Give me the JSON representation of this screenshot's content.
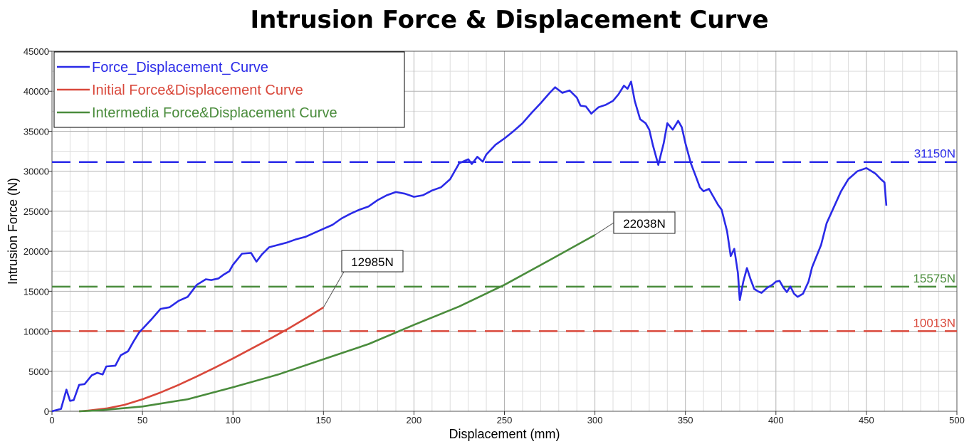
{
  "chart_data": {
    "type": "line",
    "title": "Intrusion Force & Displacement Curve",
    "xlabel": "Displacement (mm)",
    "ylabel": "Intrusion Force (N)",
    "xlim": [
      0,
      500
    ],
    "ylim": [
      0,
      45000
    ],
    "x_ticks": [
      0,
      50,
      100,
      150,
      200,
      250,
      300,
      350,
      400,
      450,
      500
    ],
    "y_ticks": [
      0,
      5000,
      10000,
      15000,
      20000,
      25000,
      30000,
      35000,
      40000,
      45000
    ],
    "grid": true,
    "legend_position": "top-left",
    "series": [
      {
        "name": "Force_Displacement_Curve",
        "color": "#2a2ae8",
        "points": [
          [
            0,
            0
          ],
          [
            5,
            300
          ],
          [
            8,
            2700
          ],
          [
            10,
            1300
          ],
          [
            12,
            1400
          ],
          [
            15,
            3300
          ],
          [
            18,
            3400
          ],
          [
            22,
            4500
          ],
          [
            25,
            4800
          ],
          [
            28,
            4600
          ],
          [
            30,
            5600
          ],
          [
            35,
            5700
          ],
          [
            38,
            7000
          ],
          [
            42,
            7500
          ],
          [
            45,
            8700
          ],
          [
            48,
            9800
          ],
          [
            50,
            10300
          ],
          [
            55,
            11500
          ],
          [
            60,
            12800
          ],
          [
            65,
            13000
          ],
          [
            70,
            13800
          ],
          [
            75,
            14300
          ],
          [
            80,
            15800
          ],
          [
            85,
            16500
          ],
          [
            88,
            16400
          ],
          [
            92,
            16600
          ],
          [
            95,
            17100
          ],
          [
            98,
            17500
          ],
          [
            100,
            18300
          ],
          [
            105,
            19700
          ],
          [
            110,
            19800
          ],
          [
            113,
            18700
          ],
          [
            116,
            19600
          ],
          [
            120,
            20500
          ],
          [
            125,
            20800
          ],
          [
            130,
            21100
          ],
          [
            135,
            21500
          ],
          [
            140,
            21800
          ],
          [
            145,
            22300
          ],
          [
            150,
            22800
          ],
          [
            155,
            23300
          ],
          [
            160,
            24100
          ],
          [
            165,
            24700
          ],
          [
            170,
            25200
          ],
          [
            175,
            25600
          ],
          [
            180,
            26400
          ],
          [
            185,
            27000
          ],
          [
            190,
            27400
          ],
          [
            195,
            27200
          ],
          [
            200,
            26800
          ],
          [
            205,
            27000
          ],
          [
            210,
            27600
          ],
          [
            215,
            28000
          ],
          [
            220,
            29000
          ],
          [
            225,
            31000
          ],
          [
            230,
            31500
          ],
          [
            232,
            30900
          ],
          [
            235,
            31800
          ],
          [
            238,
            31200
          ],
          [
            240,
            32100
          ],
          [
            245,
            33300
          ],
          [
            250,
            34100
          ],
          [
            255,
            35000
          ],
          [
            260,
            36000
          ],
          [
            265,
            37300
          ],
          [
            270,
            38500
          ],
          [
            275,
            39800
          ],
          [
            278,
            40500
          ],
          [
            282,
            39800
          ],
          [
            286,
            40100
          ],
          [
            290,
            39200
          ],
          [
            292,
            38200
          ],
          [
            295,
            38100
          ],
          [
            298,
            37200
          ],
          [
            302,
            38000
          ],
          [
            306,
            38300
          ],
          [
            310,
            38800
          ],
          [
            313,
            39600
          ],
          [
            316,
            40700
          ],
          [
            318,
            40300
          ],
          [
            320,
            41200
          ],
          [
            322,
            38800
          ],
          [
            325,
            36500
          ],
          [
            328,
            36000
          ],
          [
            330,
            35200
          ],
          [
            332,
            33300
          ],
          [
            335,
            30800
          ],
          [
            338,
            33500
          ],
          [
            340,
            36000
          ],
          [
            343,
            35200
          ],
          [
            346,
            36300
          ],
          [
            348,
            35500
          ],
          [
            350,
            33500
          ],
          [
            353,
            31000
          ],
          [
            356,
            29200
          ],
          [
            358,
            28000
          ],
          [
            360,
            27500
          ],
          [
            363,
            27800
          ],
          [
            365,
            27000
          ],
          [
            368,
            25800
          ],
          [
            370,
            25200
          ],
          [
            373,
            22500
          ],
          [
            375,
            19400
          ],
          [
            377,
            20300
          ],
          [
            379,
            17300
          ],
          [
            380,
            13900
          ],
          [
            382,
            16200
          ],
          [
            384,
            17900
          ],
          [
            386,
            16500
          ],
          [
            388,
            15300
          ],
          [
            390,
            15000
          ],
          [
            392,
            14800
          ],
          [
            395,
            15400
          ],
          [
            398,
            15800
          ],
          [
            400,
            16200
          ],
          [
            402,
            16300
          ],
          [
            404,
            15500
          ],
          [
            406,
            14900
          ],
          [
            408,
            15600
          ],
          [
            410,
            14700
          ],
          [
            412,
            14300
          ],
          [
            415,
            14700
          ],
          [
            418,
            16200
          ],
          [
            420,
            18000
          ],
          [
            425,
            20800
          ],
          [
            428,
            23500
          ],
          [
            432,
            25500
          ],
          [
            436,
            27500
          ],
          [
            440,
            29000
          ],
          [
            445,
            30000
          ],
          [
            450,
            30400
          ],
          [
            455,
            29700
          ],
          [
            458,
            29000
          ],
          [
            460,
            28600
          ],
          [
            461,
            25700
          ]
        ]
      },
      {
        "name": "Initial Force&Displacement Curve",
        "color": "#d9483b",
        "points": [
          [
            15,
            0
          ],
          [
            20,
            80
          ],
          [
            30,
            350
          ],
          [
            40,
            800
          ],
          [
            50,
            1500
          ],
          [
            60,
            2350
          ],
          [
            70,
            3300
          ],
          [
            80,
            4350
          ],
          [
            90,
            5450
          ],
          [
            100,
            6600
          ],
          [
            110,
            7800
          ],
          [
            120,
            9000
          ],
          [
            130,
            10250
          ],
          [
            140,
            11600
          ],
          [
            150,
            12985
          ]
        ]
      },
      {
        "name": "Intermedia Force&Displacement Curve",
        "color": "#4a8c3c",
        "points": [
          [
            15,
            0
          ],
          [
            25,
            100
          ],
          [
            50,
            600
          ],
          [
            75,
            1500
          ],
          [
            100,
            3000
          ],
          [
            125,
            4600
          ],
          [
            150,
            6500
          ],
          [
            175,
            8400
          ],
          [
            200,
            10800
          ],
          [
            225,
            13100
          ],
          [
            250,
            15800
          ],
          [
            275,
            18900
          ],
          [
            300,
            22038
          ]
        ]
      }
    ],
    "reference_lines": [
      {
        "value": 31150,
        "label": "31150N",
        "color": "#2a2ae8"
      },
      {
        "value": 15575,
        "label": "15575N",
        "color": "#4a8c3c"
      },
      {
        "value": 10013,
        "label": "10013N",
        "color": "#d9483b"
      }
    ],
    "annotations": [
      {
        "label": "12985N",
        "x": 150,
        "y": 12985
      },
      {
        "label": "22038N",
        "x": 300,
        "y": 22038
      }
    ]
  }
}
